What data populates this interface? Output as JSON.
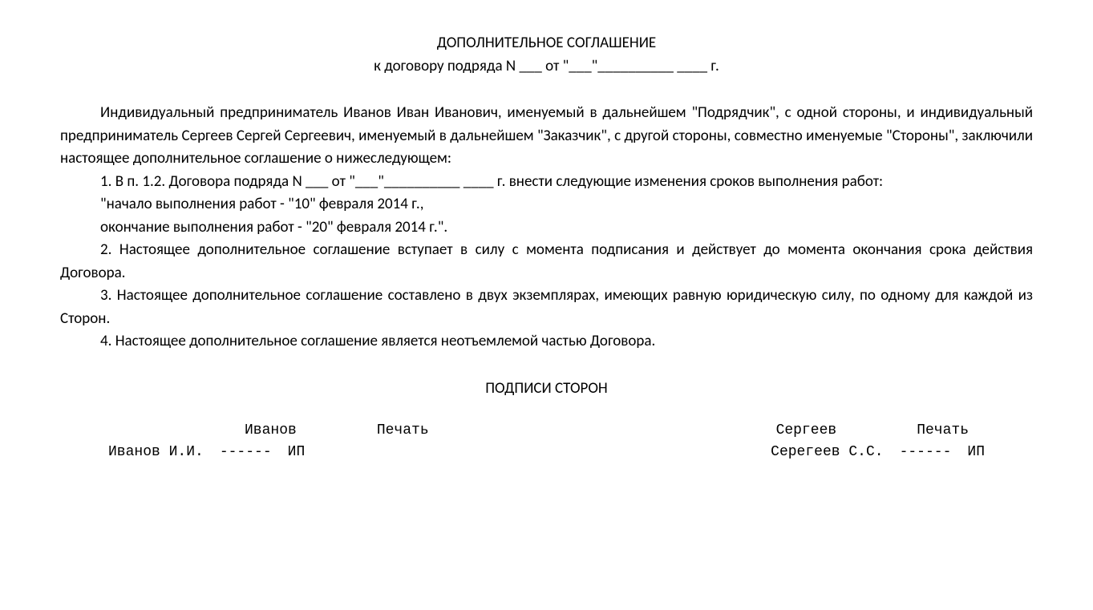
{
  "header": {
    "title": "ДОПОЛНИТЕЛЬНОЕ СОГЛАШЕНИЕ",
    "subtitle": "к договору подряда N ___ от \"___\"__________ ____ г."
  },
  "body": {
    "preamble": "Индивидуальный предприниматель Иванов Иван Иванович, именуемый в дальнейшем \"Подрядчик\", с одной стороны, и индивидуальный предприниматель Сергеев Сергей Сергеевич, именуемый в дальнейшем \"Заказчик\", с другой стороны, совместно именуемые \"Стороны\", заключили настоящее дополнительное соглашение о нижеследующем:",
    "clause1": "1. В п. 1.2. Договора подряда N ___ от \"___\"__________ ____ г. внести следующие изменения сроков выполнения работ:",
    "clause1a": "\"начало выполнения работ - \"10\" февраля 2014 г.,",
    "clause1b": "окончание выполнения работ - \"20\" февраля 2014 г.\".",
    "clause2": "2. Настоящее дополнительное соглашение вступает в силу с момента подписания и действует до момента окончания срока действия Договора.",
    "clause3": "3. Настоящее дополнительное соглашение составлено в двух экземплярах, имеющих равную юридическую силу, по одному для каждой из Сторон.",
    "clause4": "4. Настоящее дополнительное соглашение является неотъемлемой частью Договора."
  },
  "signatures": {
    "title": "ПОДПИСИ СТОРОН",
    "left": {
      "surname": "Иванов",
      "stamp": "Печать",
      "name": "Иванов И.И.",
      "dashes": "------",
      "ip": "ИП"
    },
    "right": {
      "surname": "Сергеев",
      "stamp": "Печать",
      "name": "Серегеев С.С.",
      "dashes": "------",
      "ip": "ИП"
    }
  },
  "styles": {
    "background_color": "#ffffff",
    "text_color": "#000000",
    "body_font": "Calibri",
    "body_fontsize": 19,
    "mono_font": "Courier New",
    "mono_fontsize": 18
  }
}
